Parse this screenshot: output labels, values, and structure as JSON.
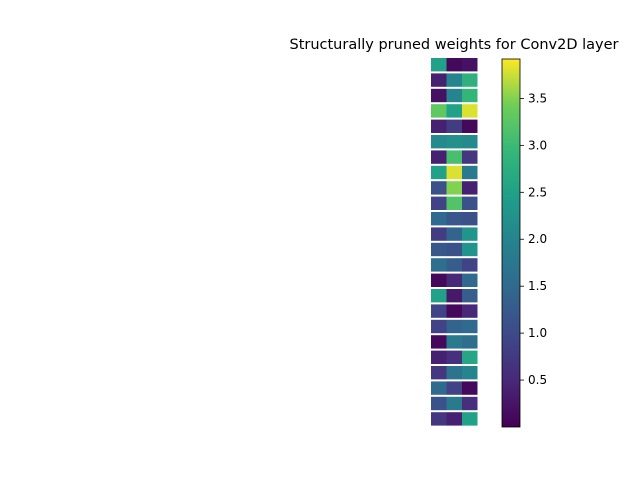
{
  "chart_data": {
    "type": "heatmap",
    "title": "Structurally pruned weights for Conv2D layer",
    "xlabel": "",
    "ylabel": "",
    "grid": false,
    "legend": "none",
    "colormap": "viridis",
    "colorbar": {
      "vmin": 0.0,
      "vmax": 3.92,
      "ticks": [
        0.5,
        1.0,
        1.5,
        2.0,
        2.5,
        3.0,
        3.5
      ],
      "tick_labels": [
        "0.5",
        "1.0",
        "1.5",
        "2.0",
        "2.5",
        "3.0",
        "3.5"
      ]
    },
    "rows": [
      [
        2.5,
        0.1,
        0.2
      ],
      [
        0.4,
        2.0,
        2.8
      ],
      [
        0.2,
        2.0,
        2.9
      ],
      [
        3.3,
        2.5,
        3.8
      ],
      [
        0.4,
        0.8,
        0.1
      ],
      [
        2.1,
        2.2,
        2.1
      ],
      [
        0.4,
        3.1,
        0.7
      ],
      [
        2.5,
        3.8,
        1.8
      ],
      [
        1.1,
        3.5,
        0.4
      ],
      [
        0.9,
        3.2,
        1.1
      ],
      [
        1.5,
        1.2,
        1.1
      ],
      [
        0.8,
        1.4,
        2.3
      ],
      [
        1.2,
        1.1,
        2.3
      ],
      [
        1.6,
        1.3,
        0.9
      ],
      [
        0.1,
        0.5,
        1.5
      ],
      [
        2.5,
        0.3,
        1.3
      ],
      [
        0.9,
        0.1,
        0.5
      ],
      [
        0.9,
        1.4,
        1.5
      ],
      [
        0.1,
        1.8,
        1.6
      ],
      [
        0.4,
        0.6,
        2.6
      ],
      [
        0.7,
        1.7,
        2.0
      ],
      [
        1.5,
        0.9,
        0.1
      ],
      [
        1.1,
        1.8,
        0.6
      ],
      [
        0.7,
        0.4,
        2.5
      ]
    ]
  }
}
